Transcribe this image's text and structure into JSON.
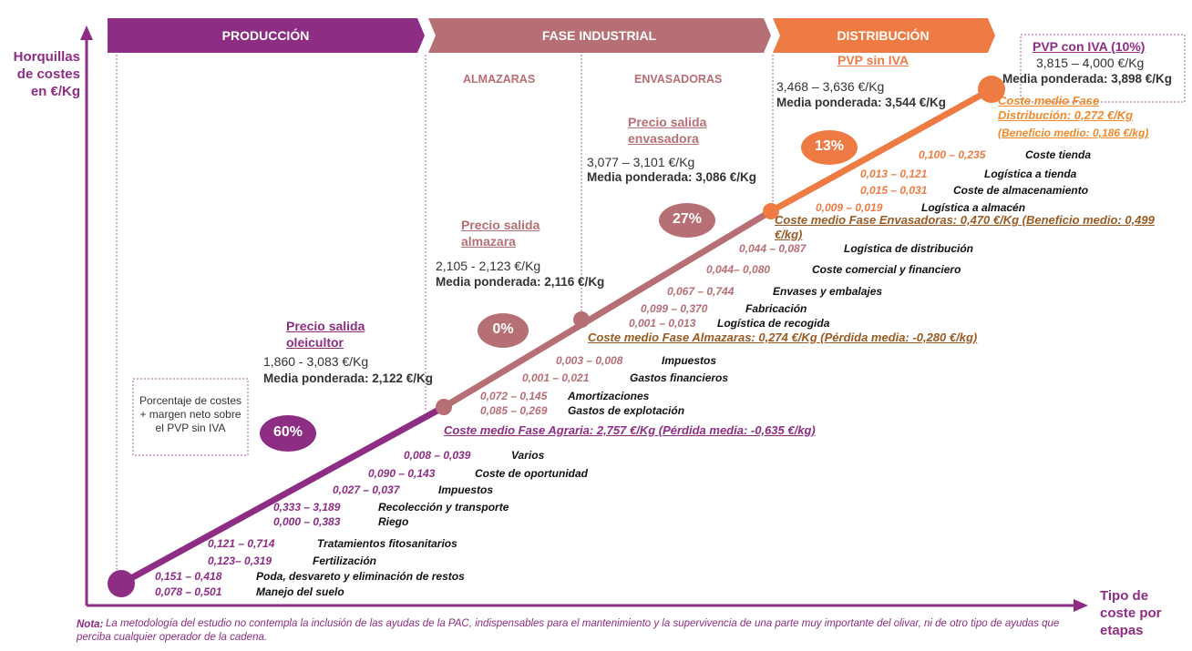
{
  "header": {
    "phases": [
      "PRODUCCIÓN",
      "FASE INDUSTRIAL",
      "DISTRIBUCIÓN"
    ],
    "subphases": [
      "ALMAZARAS",
      "ENVASADORAS"
    ]
  },
  "axes": {
    "y_label": "Horquillas de costes en €/Kg",
    "x_label": "Tipo de coste por etapas"
  },
  "legend": "Porcentaje de costes + margen neto sobre el PVP sin IVA",
  "percentages": [
    "60%",
    "0%",
    "27%",
    "13%"
  ],
  "prices": [
    {
      "title": "Precio salida oleicultor",
      "range": "1,860 - 3,083 €/Kg",
      "average": "Media ponderada: 2,122 €/Kg"
    },
    {
      "title": "Precio salida almazara",
      "range": "2,105 - 2,123 €/Kg",
      "average": "Media ponderada: 2,116 €/Kg"
    },
    {
      "title": "Precio salida envasadora",
      "range": "3,077 – 3,101 €/Kg",
      "average": "Media ponderada: 3,086 €/Kg"
    },
    {
      "title": "PVP sin IVA",
      "range": "3,468 – 3,636 €/Kg",
      "average": "Media ponderada: 3,544 €/Kg"
    },
    {
      "title": "PVP con IVA (10%)",
      "range": "3,815 – 4,000 €/Kg",
      "average": "Media ponderada: 3,898 €/Kg"
    }
  ],
  "phases": [
    {
      "items": [
        {
          "range": "0,078 – 0,501",
          "name": "Manejo del suelo"
        },
        {
          "range": "0,151 – 0,418",
          "name": "Poda, desvareto y eliminación de restos"
        },
        {
          "range": "0,123– 0,319",
          "name": "Fertilización"
        },
        {
          "range": "0,121 – 0,714",
          "name": "Tratamientos fitosanitarios"
        },
        {
          "range": "0,000 – 0,383",
          "name": "Riego"
        },
        {
          "range": "0,333 – 3,189",
          "name": "Recolección y transporte"
        },
        {
          "range": "0,027 – 0,037",
          "name": "Impuestos"
        },
        {
          "range": "0,090 – 0,143",
          "name": "Coste de oportunidad"
        },
        {
          "range": "0,008 – 0,039",
          "name": "Varios"
        }
      ],
      "summary": "Coste medio Fase Agraria: 2,757 €/Kg (Pérdida media: -0,635 €/kg)"
    },
    {
      "items": [
        {
          "range": "0,085 – 0,269",
          "name": "Gastos de explotación"
        },
        {
          "range": "0,072 – 0,145",
          "name": "Amortizaciones"
        },
        {
          "range": "0,001 – 0,021",
          "name": "Gastos financieros"
        },
        {
          "range": "0,003 – 0,008",
          "name": "Impuestos"
        }
      ],
      "summary": "Coste medio Fase Almazaras: 0,274 €/Kg (Pérdida media: -0,280 €/kg)"
    },
    {
      "items": [
        {
          "range": "0,001 – 0,013",
          "name": "Logística de recogida"
        },
        {
          "range": "0,099 – 0,370",
          "name": "Fabricación"
        },
        {
          "range": "0,067 – 0,744",
          "name": "Envases y embalajes"
        },
        {
          "range": "0,044– 0,080",
          "name": "Coste comercial y financiero"
        },
        {
          "range": "0,044 – 0,087",
          "name": "Logística de distribución"
        }
      ],
      "summary": "Coste medio Fase Envasadoras: 0,470 €/Kg (Beneficio medio: 0,499 €/kg)"
    },
    {
      "items": [
        {
          "range": "0,009 – 0,019",
          "name": "Logística a almacén"
        },
        {
          "range": "0,015 – 0,031",
          "name": "Coste de almacenamiento"
        },
        {
          "range": "0,013 – 0,121",
          "name": "Logística a tienda"
        },
        {
          "range": "0,100 – 0,235",
          "name": "Coste tienda"
        }
      ],
      "summary": "Coste medio Fase Distribución: 0,272 €/Kg",
      "summary_note": "(Beneficio medio: 0,186 €/kg)"
    }
  ],
  "note": {
    "label": "Nota:",
    "text": "La metodología del estudio no contempla la inclusión de las ayudas de la PAC, indispensables para el mantenimiento y la supervivencia de una parte muy importante del olivar, ni de otro tipo de ayudas que perciba cualquier operador de la cadena."
  }
}
